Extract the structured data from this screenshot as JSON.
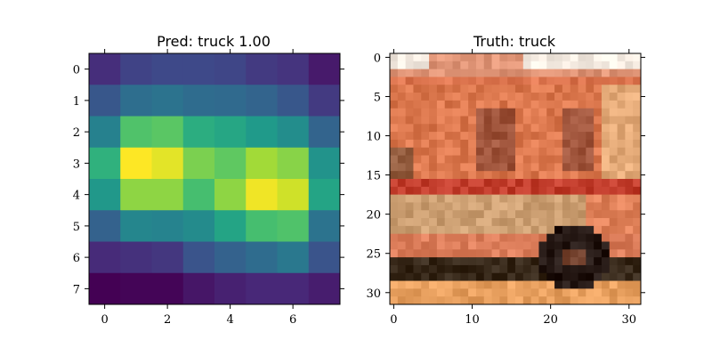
{
  "chart_data": [
    {
      "type": "heatmap",
      "title": "Pred: truck 1.00",
      "xlabel": "",
      "ylabel": "",
      "colormap": "viridis",
      "xlim": [
        -0.5,
        7.5
      ],
      "ylim": [
        7.5,
        -0.5
      ],
      "x_ticks": [
        0,
        2,
        4,
        6
      ],
      "y_ticks": [
        0,
        1,
        2,
        3,
        4,
        5,
        6,
        7
      ],
      "values": [
        [
          0.13,
          0.2,
          0.22,
          0.22,
          0.21,
          0.17,
          0.15,
          0.07
        ],
        [
          0.27,
          0.36,
          0.38,
          0.35,
          0.34,
          0.32,
          0.27,
          0.17
        ],
        [
          0.44,
          0.72,
          0.74,
          0.62,
          0.59,
          0.54,
          0.49,
          0.32
        ],
        [
          0.64,
          1.0,
          0.96,
          0.8,
          0.75,
          0.86,
          0.82,
          0.51
        ],
        [
          0.53,
          0.83,
          0.83,
          0.7,
          0.83,
          0.98,
          0.93,
          0.58
        ],
        [
          0.31,
          0.46,
          0.45,
          0.48,
          0.58,
          0.7,
          0.72,
          0.38
        ],
        [
          0.12,
          0.14,
          0.16,
          0.26,
          0.31,
          0.35,
          0.4,
          0.26
        ],
        [
          0.0,
          0.01,
          0.01,
          0.06,
          0.09,
          0.11,
          0.11,
          0.08
        ]
      ],
      "grid": false
    },
    {
      "type": "heatmap",
      "title": "Truth: truck",
      "xlabel": "",
      "ylabel": "",
      "image_kind": "rgb-photo",
      "xlim": [
        -0.5,
        31.5
      ],
      "ylim": [
        31.5,
        -0.5
      ],
      "x_ticks": [
        0,
        10,
        20,
        30
      ],
      "y_ticks": [
        0,
        5,
        10,
        15,
        20,
        25,
        30
      ],
      "grid": false
    }
  ]
}
